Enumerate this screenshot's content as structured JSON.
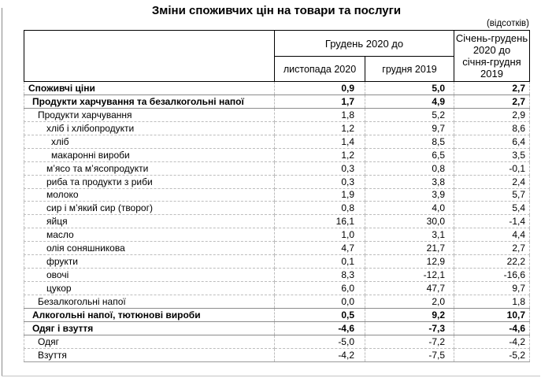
{
  "chart_data": {
    "type": "table",
    "title": "Зміни споживчих цін на товари та послуги",
    "units_note": "(відсотків)",
    "column_group_header": "Грудень 2020 до",
    "column_headers": [
      "листопада 2020",
      "грудня 2019",
      "Січень-грудень\n2020 до\nсічня-грудня\n2019"
    ],
    "column_header_period_full": "Січень-грудень 2020 до січня-грудня 2019",
    "rows": [
      {
        "label": "Споживчі ціни",
        "indent": 0,
        "bold": true,
        "values": [
          "0,9",
          "5,0",
          "2,7"
        ]
      },
      {
        "label": "Продукти харчування та безалкогольні напої",
        "indent": 1,
        "bold": true,
        "values": [
          "1,7",
          "4,9",
          "2,7"
        ]
      },
      {
        "label": "Продукти харчування",
        "indent": 2,
        "bold": false,
        "values": [
          "1,8",
          "5,2",
          "2,9"
        ]
      },
      {
        "label": "хліб і хлібопродукти",
        "indent": 3,
        "bold": false,
        "values": [
          "1,2",
          "9,7",
          "8,6"
        ]
      },
      {
        "label": "хліб",
        "indent": 4,
        "bold": false,
        "values": [
          "1,4",
          "8,5",
          "6,4"
        ]
      },
      {
        "label": "макаронні вироби",
        "indent": 4,
        "bold": false,
        "values": [
          "1,2",
          "6,5",
          "3,5"
        ]
      },
      {
        "label": "м’ясо та м’ясопродукти",
        "indent": 3,
        "bold": false,
        "values": [
          "0,3",
          "0,8",
          "-0,1"
        ]
      },
      {
        "label": "риба та продукти з риби",
        "indent": 3,
        "bold": false,
        "values": [
          "0,3",
          "3,8",
          "2,4"
        ]
      },
      {
        "label": "молоко",
        "indent": 3,
        "bold": false,
        "values": [
          "1,9",
          "3,9",
          "5,7"
        ]
      },
      {
        "label": "сир і м’який сир (творог)",
        "indent": 3,
        "bold": false,
        "values": [
          "0,8",
          "4,0",
          "5,4"
        ]
      },
      {
        "label": "яйця",
        "indent": 3,
        "bold": false,
        "values": [
          "16,1",
          "30,0",
          "-1,4"
        ]
      },
      {
        "label": "масло",
        "indent": 3,
        "bold": false,
        "values": [
          "1,0",
          "3,1",
          "4,4"
        ]
      },
      {
        "label": "олія соняшникова",
        "indent": 3,
        "bold": false,
        "values": [
          "4,7",
          "21,7",
          "2,7"
        ]
      },
      {
        "label": "фрукти",
        "indent": 3,
        "bold": false,
        "values": [
          "0,1",
          "12,9",
          "22,2"
        ]
      },
      {
        "label": "овочі",
        "indent": 3,
        "bold": false,
        "values": [
          "8,3",
          "-12,1",
          "-16,6"
        ]
      },
      {
        "label": "цукор",
        "indent": 3,
        "bold": false,
        "values": [
          "6,0",
          "47,7",
          "9,7"
        ]
      },
      {
        "label": "Безалкогольні напої",
        "indent": 2,
        "bold": false,
        "values": [
          "0,0",
          "2,0",
          "1,8"
        ]
      },
      {
        "label": "Алкогольні напої, тютюнові вироби",
        "indent": 1,
        "bold": true,
        "values": [
          "0,5",
          "9,2",
          "10,7"
        ]
      },
      {
        "label": "Одяг і взуття",
        "indent": 1,
        "bold": true,
        "values": [
          "-4,6",
          "-7,3",
          "-4,6"
        ]
      },
      {
        "label": "Одяг",
        "indent": 2,
        "bold": false,
        "values": [
          "-5,0",
          "-7,2",
          "-4,2"
        ]
      },
      {
        "label": "Взуття",
        "indent": 2,
        "bold": false,
        "values": [
          "-4,2",
          "-7,5",
          "-5,2"
        ]
      }
    ]
  }
}
